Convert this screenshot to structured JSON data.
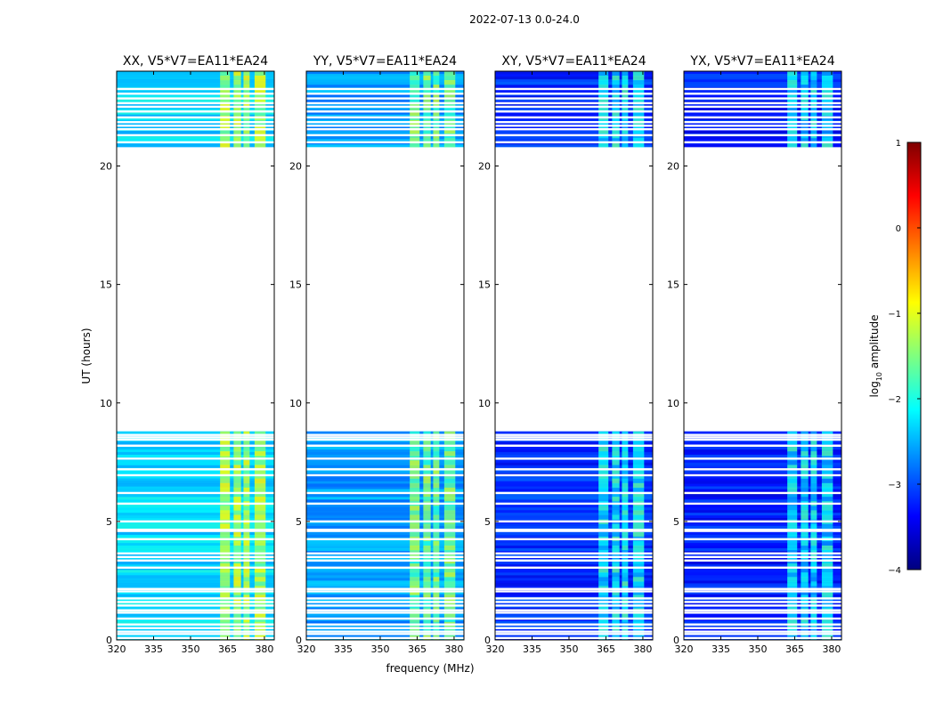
{
  "figure": {
    "suptitle": "2022-07-13 0.0-24.0",
    "xlabel": "frequency (MHz)",
    "ylabel": "UT (hours)"
  },
  "colorbar": {
    "label_prefix": "log",
    "label_sub": "10",
    "label_suffix": " amplitude",
    "ticks": [
      1,
      0,
      -1,
      -2,
      -3,
      -4
    ],
    "tick_labels": [
      "1",
      "0",
      "−1",
      "−2",
      "−3",
      "−4"
    ],
    "range": [
      -4,
      1
    ],
    "colormap": "jet",
    "colors": [
      "#00007f",
      "#0000ff",
      "#007fff",
      "#00ffff",
      "#7fff7f",
      "#ffff00",
      "#ff7f00",
      "#ff0000",
      "#7f0000"
    ]
  },
  "chart_data": {
    "type": "heatmap",
    "x_tick_labels": [
      "320",
      "335",
      "350",
      "365",
      "380"
    ],
    "x_ticks": [
      320,
      335,
      350,
      365,
      380
    ],
    "xlim": [
      320,
      384
    ],
    "y_tick_labels": [
      "0",
      "5",
      "10",
      "15",
      "20"
    ],
    "y_ticks": [
      0,
      5,
      10,
      15,
      20
    ],
    "ylim": [
      0,
      24
    ],
    "data_hour_ranges": [
      [
        0.0,
        4.55
      ],
      [
        4.7,
        8.15
      ],
      [
        8.25,
        8.8
      ],
      [
        20.8,
        24.0
      ]
    ],
    "gap_hours": [
      0.08,
      0.25,
      0.35,
      0.5,
      0.65,
      0.9,
      1.15,
      1.25,
      1.45,
      1.6,
      1.75,
      2.05,
      2.15,
      3.05,
      3.35,
      3.5,
      3.65,
      4.25,
      5.0,
      5.75,
      6.2,
      6.95,
      7.2,
      7.65,
      8.45,
      8.55,
      8.65,
      21.0,
      21.3,
      21.55,
      21.7,
      21.85,
      22.05,
      22.3,
      22.5,
      22.65,
      22.85,
      23.05,
      23.25
    ],
    "rfi_channels_mhz": [
      [
        362,
        366
      ],
      [
        367.5,
        370.5
      ],
      [
        371.5,
        374
      ],
      [
        376,
        380.5
      ]
    ],
    "panels": [
      {
        "title": "XX, V5*V7=EA11*EA24",
        "level": -2.3
      },
      {
        "title": "YY, V5*V7=EA11*EA24",
        "level": -2.6
      },
      {
        "title": "XY, V5*V7=EA11*EA24",
        "level": -3.15
      },
      {
        "title": "YX, V5*V7=EA11*EA24",
        "level": -3.25
      }
    ]
  }
}
